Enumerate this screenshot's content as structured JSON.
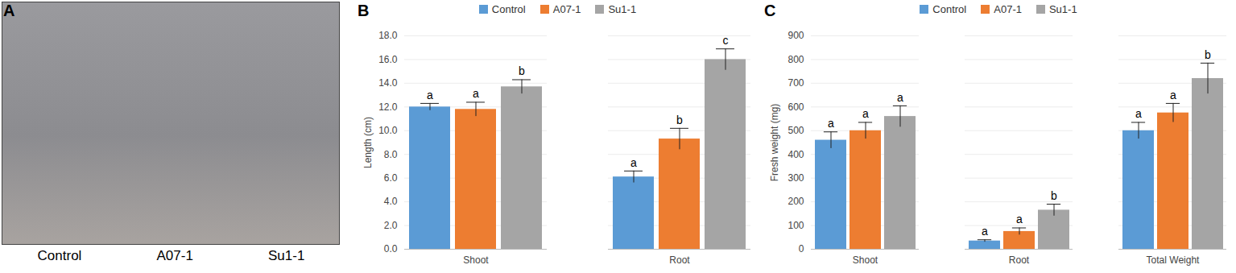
{
  "photo": {
    "panel_label": "A",
    "labels": [
      "Control",
      "A07-1",
      "Su1-1"
    ]
  },
  "chart_data": [
    {
      "type": "bar",
      "panel_label": "B",
      "ylabel": "Length (cm)",
      "categories": [
        "Shoot",
        "Root"
      ],
      "series": [
        {
          "name": "Control",
          "color": "#5b9bd5",
          "values": [
            12.0,
            6.1
          ],
          "errors": [
            0.3,
            0.5
          ],
          "significance_labels": [
            "a",
            "a"
          ]
        },
        {
          "name": "A07-1",
          "color": "#ed7d31",
          "values": [
            11.8,
            9.3
          ],
          "errors": [
            0.6,
            0.9
          ],
          "significance_labels": [
            "a",
            "b"
          ]
        },
        {
          "name": "Su1-1",
          "color": "#a5a5a5",
          "values": [
            13.7,
            16.0
          ],
          "errors": [
            0.6,
            0.9
          ],
          "significance_labels": [
            "b",
            "c"
          ]
        }
      ],
      "ylim": [
        0,
        18
      ],
      "yticks": [
        {
          "value": 0,
          "label": "0.0"
        },
        {
          "value": 2,
          "label": "2.0"
        },
        {
          "value": 4,
          "label": "4.0"
        },
        {
          "value": 6,
          "label": "6.0"
        },
        {
          "value": 8,
          "label": "8.0"
        },
        {
          "value": 10,
          "label": "10.0"
        },
        {
          "value": 12,
          "label": "12.0"
        },
        {
          "value": 14,
          "label": "14.0"
        },
        {
          "value": 16,
          "label": "16.0"
        },
        {
          "value": 18,
          "label": "18.0"
        }
      ],
      "grid": true,
      "legend": "top"
    },
    {
      "type": "bar",
      "panel_label": "C",
      "ylabel": "Fresh weight (mg)",
      "categories": [
        "Shoot",
        "Root",
        "Total Weight"
      ],
      "series": [
        {
          "name": "Control",
          "color": "#5b9bd5",
          "values": [
            460,
            35,
            500
          ],
          "errors": [
            35,
            5,
            35
          ],
          "significance_labels": [
            "a",
            "a",
            "a"
          ]
        },
        {
          "name": "A07-1",
          "color": "#ed7d31",
          "values": [
            500,
            75,
            575
          ],
          "errors": [
            35,
            15,
            40
          ],
          "significance_labels": [
            "a",
            "a",
            "a"
          ]
        },
        {
          "name": "Su1-1",
          "color": "#a5a5a5",
          "values": [
            560,
            165,
            720
          ],
          "errors": [
            45,
            25,
            65
          ],
          "significance_labels": [
            "a",
            "b",
            "b"
          ]
        }
      ],
      "ylim": [
        0,
        900
      ],
      "yticks": [
        0,
        100,
        200,
        300,
        400,
        500,
        600,
        700,
        800,
        900
      ],
      "grid": true,
      "legend": "top"
    }
  ]
}
